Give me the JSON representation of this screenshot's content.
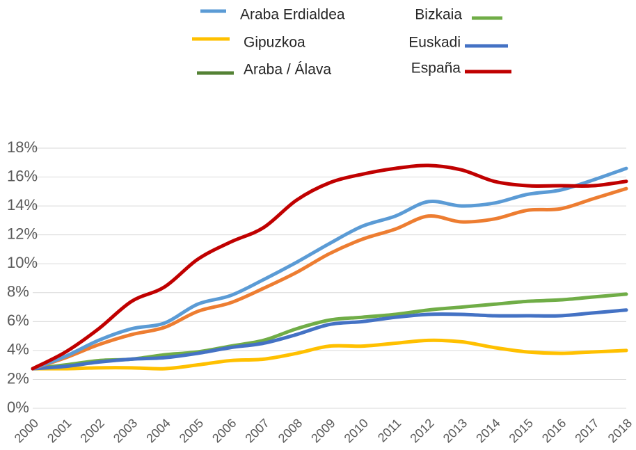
{
  "chart_data": {
    "type": "line",
    "categories": [
      "2000",
      "2001",
      "2002",
      "2003",
      "2004",
      "2005",
      "2006",
      "2007",
      "2008",
      "2009",
      "2010",
      "2011",
      "2012",
      "2013",
      "2014",
      "2015",
      "2016",
      "2017",
      "2018"
    ],
    "series": [
      {
        "name": "Gipuzkoa",
        "color": "#ffc000",
        "values": [
          2.74,
          2.74,
          2.8,
          2.8,
          2.74,
          3.0,
          3.3,
          3.4,
          3.8,
          4.3,
          4.3,
          4.5,
          4.7,
          4.6,
          4.2,
          3.9,
          3.8,
          3.9,
          4.0
        ]
      },
      {
        "name": "Bizkaia",
        "color": "#70ad47",
        "values": [
          2.74,
          3.0,
          3.3,
          3.4,
          3.7,
          3.9,
          4.3,
          4.7,
          5.5,
          6.1,
          6.3,
          6.5,
          6.8,
          7.0,
          7.2,
          7.4,
          7.5,
          7.7,
          7.9
        ]
      },
      {
        "name": "Euskadi",
        "color": "#4472c4",
        "values": [
          2.74,
          2.9,
          3.2,
          3.4,
          3.5,
          3.8,
          4.2,
          4.5,
          5.1,
          5.8,
          6.0,
          6.3,
          6.5,
          6.5,
          6.4,
          6.4,
          6.4,
          6.6,
          6.8
        ]
      },
      {
        "name": "Araba / Álava",
        "color": "#ed7d31",
        "legend_color": "#548235",
        "values": [
          2.74,
          3.5,
          4.4,
          5.1,
          5.6,
          6.7,
          7.3,
          8.3,
          9.4,
          10.7,
          11.7,
          12.4,
          13.3,
          12.9,
          13.1,
          13.7,
          13.8,
          14.5,
          15.2
        ]
      },
      {
        "name": "Araba Erdialdea",
        "color": "#5b9bd5",
        "values": [
          2.74,
          3.6,
          4.7,
          5.5,
          5.9,
          7.2,
          7.8,
          8.9,
          10.1,
          11.4,
          12.6,
          13.3,
          14.3,
          14.0,
          14.2,
          14.8,
          15.1,
          15.8,
          16.6
        ]
      },
      {
        "name": "España",
        "color": "#c00000",
        "values": [
          2.74,
          3.9,
          5.5,
          7.4,
          8.4,
          10.3,
          11.5,
          12.5,
          14.4,
          15.6,
          16.2,
          16.6,
          16.8,
          16.5,
          15.7,
          15.4,
          15.4,
          15.4,
          15.7
        ]
      }
    ],
    "ylim": [
      0,
      18
    ],
    "yticks": [
      {
        "value": 0,
        "label": "0%"
      },
      {
        "value": 2,
        "label": "2%"
      },
      {
        "value": 4,
        "label": "4%"
      },
      {
        "value": 6,
        "label": "6%"
      },
      {
        "value": 8,
        "label": "8%"
      },
      {
        "value": 10,
        "label": "10%"
      },
      {
        "value": 12,
        "label": "12%"
      },
      {
        "value": 14,
        "label": "14%"
      },
      {
        "value": 16,
        "label": "16%"
      },
      {
        "value": 18,
        "label": "18%"
      }
    ],
    "grid": true
  }
}
